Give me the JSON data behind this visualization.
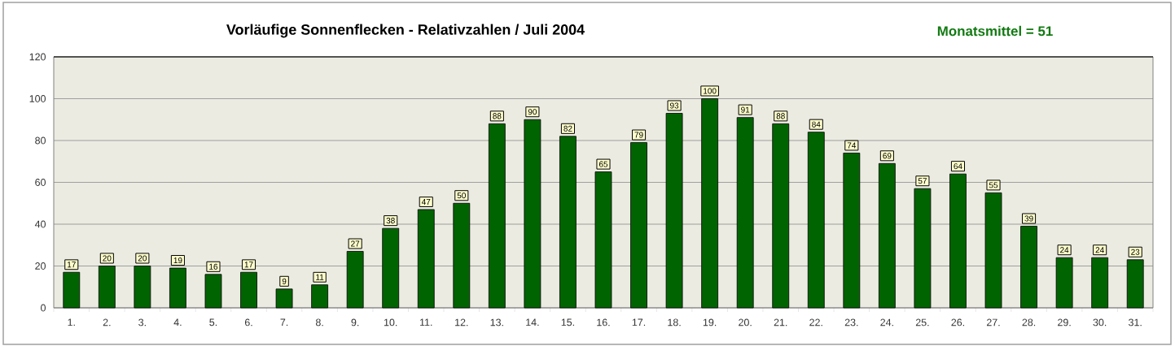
{
  "chart_data": {
    "type": "bar",
    "title": "Vorläufige Sonnenflecken - Relativzahlen / Juli 2004",
    "annotations": [
      "Monatsmittel = 51"
    ],
    "categories": [
      "1.",
      "2.",
      "3.",
      "4.",
      "5.",
      "6.",
      "7.",
      "8.",
      "9.",
      "10.",
      "11.",
      "12.",
      "13.",
      "14.",
      "15.",
      "16.",
      "17.",
      "18.",
      "19.",
      "20.",
      "21.",
      "22.",
      "23.",
      "24.",
      "25.",
      "26.",
      "27.",
      "28.",
      "29.",
      "30.",
      "31."
    ],
    "values": [
      17,
      20,
      20,
      19,
      16,
      17,
      9,
      11,
      27,
      38,
      47,
      50,
      88,
      90,
      82,
      65,
      79,
      93,
      100,
      91,
      88,
      84,
      74,
      69,
      57,
      64,
      55,
      39,
      24,
      24,
      23
    ],
    "color": "#006400",
    "ylim": [
      0,
      120
    ],
    "yticks": [
      0,
      20,
      40,
      60,
      80,
      100,
      120
    ],
    "grid": "y",
    "data_labels": true
  }
}
